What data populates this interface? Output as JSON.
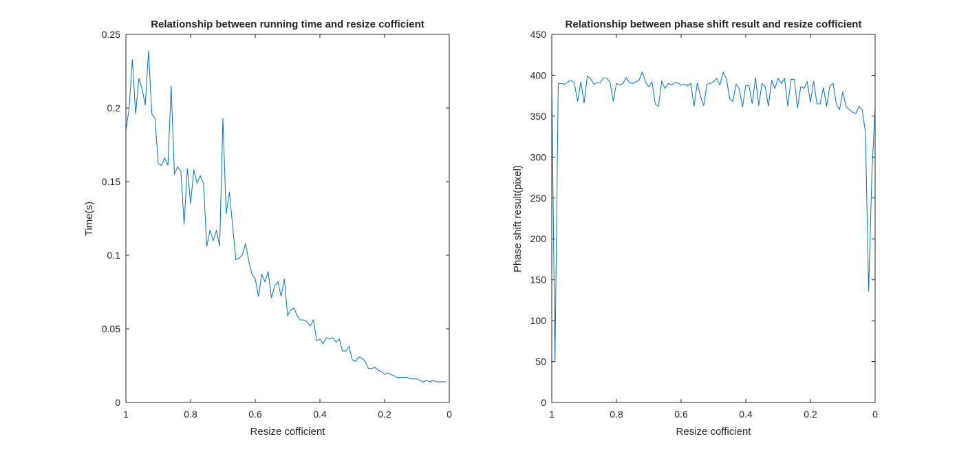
{
  "colors": {
    "line": "#0072bd",
    "axis": "#262626",
    "background": "#ffffff"
  },
  "chart_data": [
    {
      "type": "line",
      "title": "Relationship between running time and resize cofficient",
      "xlabel": "Resize cofficient",
      "ylabel": "Time(s)",
      "xlim": [
        0,
        1
      ],
      "x_reversed": true,
      "ylim": [
        0,
        0.25
      ],
      "xticks": [
        1,
        0.8,
        0.6,
        0.4,
        0.2,
        0
      ],
      "xtick_labels": [
        "1",
        "0.8",
        "0.6",
        "0.4",
        "0.2",
        "0"
      ],
      "yticks": [
        0,
        0.05,
        0.1,
        0.15,
        0.2,
        0.25
      ],
      "ytick_labels": [
        "0",
        "0.05",
        "0.1",
        "0.15",
        "0.2",
        "0.25"
      ],
      "grid": false,
      "series": [
        {
          "x": [
            1.0,
            0.99,
            0.98,
            0.97,
            0.96,
            0.95,
            0.94,
            0.93,
            0.92,
            0.91,
            0.9,
            0.89,
            0.88,
            0.87,
            0.86,
            0.85,
            0.84,
            0.83,
            0.82,
            0.81,
            0.8,
            0.79,
            0.78,
            0.77,
            0.76,
            0.75,
            0.74,
            0.73,
            0.72,
            0.71,
            0.7,
            0.69,
            0.68,
            0.67,
            0.66,
            0.65,
            0.64,
            0.63,
            0.62,
            0.61,
            0.6,
            0.59,
            0.58,
            0.57,
            0.56,
            0.55,
            0.54,
            0.53,
            0.52,
            0.51,
            0.5,
            0.49,
            0.48,
            0.47,
            0.46,
            0.45,
            0.44,
            0.43,
            0.42,
            0.41,
            0.4,
            0.39,
            0.38,
            0.37,
            0.36,
            0.35,
            0.34,
            0.33,
            0.32,
            0.31,
            0.3,
            0.29,
            0.28,
            0.27,
            0.26,
            0.25,
            0.24,
            0.23,
            0.22,
            0.21,
            0.2,
            0.19,
            0.18,
            0.17,
            0.16,
            0.15,
            0.14,
            0.13,
            0.12,
            0.11,
            0.1,
            0.09,
            0.08,
            0.07,
            0.06,
            0.05,
            0.04,
            0.03,
            0.02,
            0.01
          ],
          "y": [
            0.185,
            0.2,
            0.233,
            0.196,
            0.22,
            0.213,
            0.202,
            0.239,
            0.196,
            0.193,
            0.162,
            0.161,
            0.166,
            0.161,
            0.215,
            0.155,
            0.16,
            0.157,
            0.121,
            0.159,
            0.135,
            0.158,
            0.149,
            0.154,
            0.149,
            0.106,
            0.117,
            0.11,
            0.117,
            0.106,
            0.193,
            0.128,
            0.143,
            0.12,
            0.097,
            0.098,
            0.1,
            0.108,
            0.096,
            0.087,
            0.084,
            0.072,
            0.087,
            0.082,
            0.089,
            0.071,
            0.079,
            0.082,
            0.072,
            0.084,
            0.059,
            0.063,
            0.064,
            0.059,
            0.056,
            0.056,
            0.055,
            0.052,
            0.056,
            0.042,
            0.043,
            0.04,
            0.044,
            0.043,
            0.044,
            0.041,
            0.043,
            0.035,
            0.035,
            0.038,
            0.029,
            0.028,
            0.031,
            0.03,
            0.028,
            0.023,
            0.023,
            0.024,
            0.022,
            0.021,
            0.019,
            0.02,
            0.019,
            0.018,
            0.017,
            0.017,
            0.017,
            0.017,
            0.016,
            0.016,
            0.016,
            0.015,
            0.014,
            0.015,
            0.014,
            0.015,
            0.014,
            0.014,
            0.014,
            0.014
          ]
        }
      ]
    },
    {
      "type": "line",
      "title": "Relationship between phase shift result and resize cofficient",
      "xlabel": "Resize cofficient",
      "ylabel": "Phase shift result(pixel)",
      "xlim": [
        0,
        1
      ],
      "x_reversed": true,
      "ylim": [
        0,
        450
      ],
      "xticks": [
        1,
        0.8,
        0.6,
        0.4,
        0.2,
        0
      ],
      "xtick_labels": [
        "1",
        "0.8",
        "0.6",
        "0.4",
        "0.2",
        "0"
      ],
      "yticks": [
        0,
        50,
        100,
        150,
        200,
        250,
        300,
        350,
        400,
        450
      ],
      "ytick_labels": [
        "0",
        "50",
        "100",
        "150",
        "200",
        "250",
        "300",
        "350",
        "400",
        "450"
      ],
      "grid": false,
      "series": [
        {
          "x": [
            1.0,
            0.99,
            0.98,
            0.97,
            0.96,
            0.95,
            0.94,
            0.93,
            0.92,
            0.91,
            0.9,
            0.89,
            0.88,
            0.87,
            0.86,
            0.85,
            0.84,
            0.83,
            0.82,
            0.81,
            0.8,
            0.79,
            0.78,
            0.77,
            0.76,
            0.75,
            0.74,
            0.73,
            0.72,
            0.71,
            0.7,
            0.69,
            0.68,
            0.67,
            0.66,
            0.65,
            0.64,
            0.63,
            0.62,
            0.61,
            0.6,
            0.59,
            0.58,
            0.57,
            0.56,
            0.55,
            0.54,
            0.53,
            0.52,
            0.51,
            0.5,
            0.49,
            0.48,
            0.47,
            0.46,
            0.45,
            0.44,
            0.43,
            0.42,
            0.41,
            0.4,
            0.39,
            0.38,
            0.37,
            0.36,
            0.35,
            0.34,
            0.33,
            0.32,
            0.31,
            0.3,
            0.29,
            0.28,
            0.27,
            0.26,
            0.25,
            0.24,
            0.23,
            0.22,
            0.21,
            0.2,
            0.19,
            0.18,
            0.17,
            0.16,
            0.15,
            0.14,
            0.13,
            0.12,
            0.11,
            0.1,
            0.09,
            0.08,
            0.07,
            0.06,
            0.05,
            0.04,
            0.03,
            0.02,
            0.01,
            0.0
          ],
          "y": [
            390,
            50,
            390,
            390,
            389,
            392,
            394,
            390,
            368,
            392,
            366,
            399,
            396,
            389,
            391,
            391,
            397,
            396,
            392,
            368,
            390,
            388,
            390,
            397,
            391,
            390,
            392,
            394,
            404,
            392,
            386,
            392,
            365,
            362,
            393,
            384,
            390,
            388,
            391,
            391,
            388,
            389,
            387,
            390,
            362,
            391,
            374,
            363,
            389,
            390,
            392,
            396,
            388,
            404,
            396,
            372,
            368,
            389,
            383,
            361,
            388,
            387,
            365,
            397,
            363,
            390,
            386,
            362,
            394,
            384,
            396,
            390,
            396,
            362,
            395,
            395,
            360,
            386,
            384,
            392,
            367,
            393,
            365,
            365,
            385,
            362,
            387,
            390,
            365,
            358,
            380,
            362,
            358,
            355,
            353,
            362,
            358,
            330,
            136,
            280,
            360
          ]
        }
      ]
    }
  ]
}
